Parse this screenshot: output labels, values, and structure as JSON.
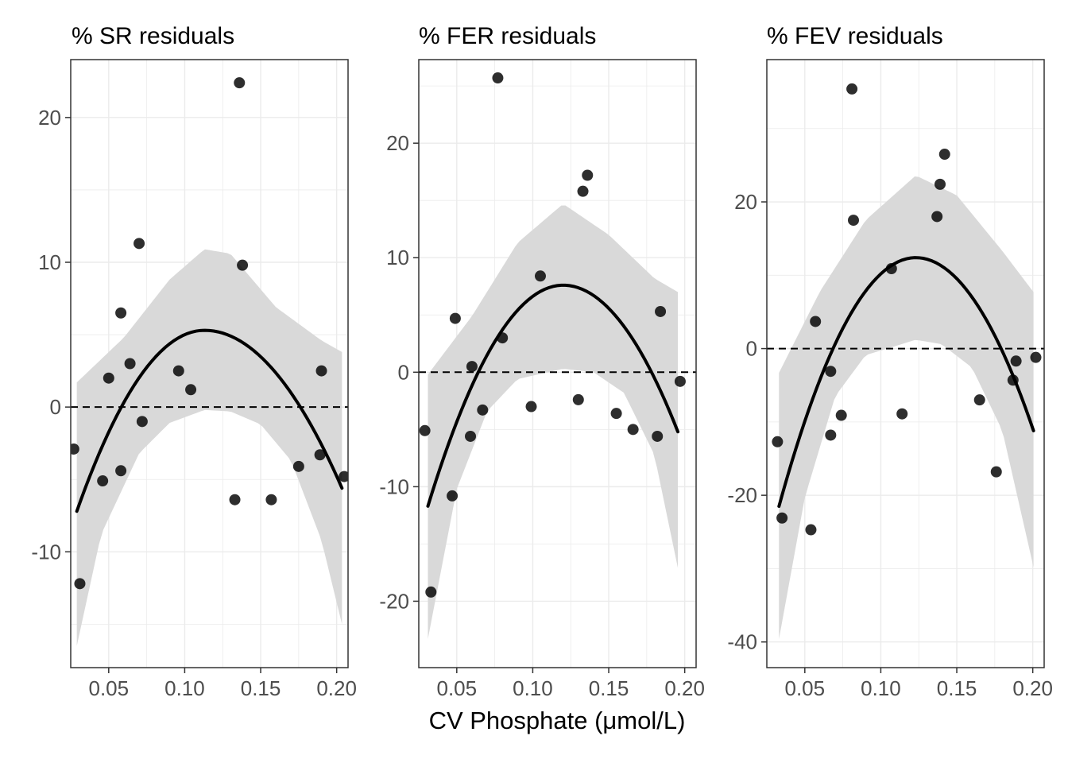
{
  "xlabel": "CV Phosphate (μmol/L)",
  "colors": {
    "point": "#000000",
    "ribbon": "#d9d9d9",
    "grid": "#ebebeb",
    "border": "#333333",
    "tick_text": "#4d4d4d"
  },
  "chart_data": [
    {
      "type": "scatter",
      "title": "% SR residuals",
      "xlabel": "CV Phosphate (μmol/L)",
      "ylabel": "",
      "xlim": [
        0.025,
        0.2075
      ],
      "ylim": [
        -18,
        24
      ],
      "x_ticks": [
        0.05,
        0.1,
        0.15,
        0.2
      ],
      "x_tick_labels": [
        "0.05",
        "0.10",
        "0.15",
        "0.20"
      ],
      "y_ticks": [
        -10,
        0,
        10,
        20
      ],
      "y_tick_labels": [
        "-10",
        "0",
        "10",
        "20"
      ],
      "y_minor": [
        -15,
        -5,
        5,
        15
      ],
      "grid": true,
      "reference_line": 0,
      "points": [
        [
          0.027,
          -2.9
        ],
        [
          0.031,
          -12.2
        ],
        [
          0.046,
          -5.1
        ],
        [
          0.05,
          2.0
        ],
        [
          0.058,
          6.5
        ],
        [
          0.058,
          -4.4
        ],
        [
          0.064,
          3.0
        ],
        [
          0.07,
          11.3
        ],
        [
          0.072,
          -1.0
        ],
        [
          0.096,
          2.5
        ],
        [
          0.104,
          1.2
        ],
        [
          0.136,
          22.4
        ],
        [
          0.138,
          9.8
        ],
        [
          0.133,
          -6.4
        ],
        [
          0.157,
          -6.4
        ],
        [
          0.175,
          -4.1
        ],
        [
          0.189,
          -3.3
        ],
        [
          0.19,
          2.5
        ],
        [
          0.205,
          -4.8
        ]
      ],
      "fit": {
        "x": [
          0.029,
          0.2035
        ],
        "vertex_x": 0.113,
        "vertex_y": 5.3,
        "left_y": -7.2,
        "right_y": -5.6
      },
      "ci_upper": [
        [
          0.029,
          1.7
        ],
        [
          0.06,
          4.8
        ],
        [
          0.09,
          8.8
        ],
        [
          0.113,
          10.9
        ],
        [
          0.13,
          10.6
        ],
        [
          0.16,
          6.9
        ],
        [
          0.19,
          4.6
        ],
        [
          0.2035,
          3.8
        ]
      ],
      "ci_lower": [
        [
          0.029,
          -16.5
        ],
        [
          0.045,
          -8.8
        ],
        [
          0.07,
          -3.2
        ],
        [
          0.09,
          -1.1
        ],
        [
          0.113,
          -0.2
        ],
        [
          0.13,
          -0.3
        ],
        [
          0.15,
          -1.2
        ],
        [
          0.17,
          -3.7
        ],
        [
          0.19,
          -9.2
        ],
        [
          0.2035,
          -15.0
        ]
      ]
    },
    {
      "type": "scatter",
      "title": "% FER residuals",
      "xlabel": "CV Phosphate (μmol/L)",
      "ylabel": "",
      "xlim": [
        0.025,
        0.2075
      ],
      "ylim": [
        -25.8,
        27.3
      ],
      "x_ticks": [
        0.05,
        0.1,
        0.15,
        0.2
      ],
      "x_tick_labels": [
        "0.05",
        "0.10",
        "0.15",
        "0.20"
      ],
      "y_ticks": [
        -20,
        -10,
        0,
        10,
        20
      ],
      "y_tick_labels": [
        "-20",
        "-10",
        "0",
        "10",
        "20"
      ],
      "y_minor": [
        -15,
        -5,
        5,
        15,
        25
      ],
      "grid": true,
      "reference_line": 0,
      "points": [
        [
          0.029,
          -5.1
        ],
        [
          0.033,
          -19.2
        ],
        [
          0.047,
          -10.8
        ],
        [
          0.049,
          4.7
        ],
        [
          0.059,
          -5.6
        ],
        [
          0.06,
          0.5
        ],
        [
          0.067,
          -3.3
        ],
        [
          0.077,
          25.7
        ],
        [
          0.08,
          3.0
        ],
        [
          0.099,
          -3.0
        ],
        [
          0.105,
          8.4
        ],
        [
          0.13,
          -2.4
        ],
        [
          0.133,
          15.8
        ],
        [
          0.136,
          17.2
        ],
        [
          0.155,
          -3.6
        ],
        [
          0.166,
          -5.0
        ],
        [
          0.182,
          -5.6
        ],
        [
          0.184,
          5.3
        ],
        [
          0.197,
          -0.8
        ]
      ],
      "fit": {
        "x": [
          0.031,
          0.1955
        ],
        "vertex_x": 0.12,
        "vertex_y": 7.6,
        "left_y": -11.7,
        "right_y": -5.2
      },
      "ci_upper": [
        [
          0.031,
          -0.2
        ],
        [
          0.06,
          4.9
        ],
        [
          0.09,
          11.3
        ],
        [
          0.12,
          14.7
        ],
        [
          0.15,
          12.0
        ],
        [
          0.18,
          8.2
        ],
        [
          0.1955,
          7.0
        ]
      ],
      "ci_lower": [
        [
          0.031,
          -23.3
        ],
        [
          0.05,
          -10.2
        ],
        [
          0.07,
          -3.4
        ],
        [
          0.09,
          -0.6
        ],
        [
          0.12,
          0.3
        ],
        [
          0.14,
          0.0
        ],
        [
          0.16,
          -1.8
        ],
        [
          0.18,
          -7.2
        ],
        [
          0.1955,
          -17.1
        ]
      ]
    },
    {
      "type": "scatter",
      "title": "% FEV residuals",
      "xlabel": "CV Phosphate (μmol/L)",
      "ylabel": "",
      "xlim": [
        0.025,
        0.2075
      ],
      "ylim": [
        -43.5,
        39.4
      ],
      "x_ticks": [
        0.05,
        0.1,
        0.15,
        0.2
      ],
      "x_tick_labels": [
        "0.05",
        "0.10",
        "0.15",
        "0.20"
      ],
      "y_ticks": [
        -40,
        -20,
        0,
        20
      ],
      "y_tick_labels": [
        "-40",
        "-20",
        "0",
        "20"
      ],
      "y_minor": [
        -30,
        -10,
        10,
        30
      ],
      "grid": true,
      "reference_line": 0,
      "points": [
        [
          0.032,
          -12.7
        ],
        [
          0.035,
          -23.1
        ],
        [
          0.054,
          -24.7
        ],
        [
          0.057,
          3.7
        ],
        [
          0.067,
          -3.1
        ],
        [
          0.067,
          -11.8
        ],
        [
          0.074,
          -9.1
        ],
        [
          0.081,
          35.4
        ],
        [
          0.082,
          17.5
        ],
        [
          0.107,
          10.9
        ],
        [
          0.114,
          -8.9
        ],
        [
          0.137,
          18.0
        ],
        [
          0.139,
          22.4
        ],
        [
          0.142,
          26.5
        ],
        [
          0.165,
          -7.0
        ],
        [
          0.176,
          -16.8
        ],
        [
          0.187,
          -4.3
        ],
        [
          0.189,
          -1.7
        ],
        [
          0.202,
          -1.2
        ]
      ],
      "fit": {
        "x": [
          0.033,
          0.2005
        ],
        "vertex_x": 0.123,
        "vertex_y": 12.4,
        "left_y": -21.5,
        "right_y": -11.2
      },
      "ci_upper": [
        [
          0.033,
          -3.3
        ],
        [
          0.06,
          7.8
        ],
        [
          0.09,
          17.5
        ],
        [
          0.123,
          23.6
        ],
        [
          0.15,
          20.9
        ],
        [
          0.18,
          13.3
        ],
        [
          0.2005,
          7.7
        ]
      ],
      "ci_lower": [
        [
          0.033,
          -39.6
        ],
        [
          0.05,
          -20.3
        ],
        [
          0.07,
          -6.5
        ],
        [
          0.09,
          -0.9
        ],
        [
          0.123,
          1.2
        ],
        [
          0.14,
          0.6
        ],
        [
          0.16,
          -2.6
        ],
        [
          0.18,
          -11.2
        ],
        [
          0.2005,
          -29.8
        ]
      ]
    }
  ]
}
